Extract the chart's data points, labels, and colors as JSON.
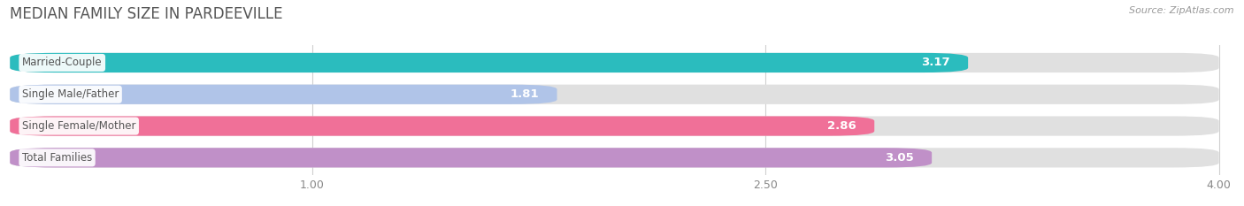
{
  "title": "MEDIAN FAMILY SIZE IN PARDEEVILLE",
  "source": "Source: ZipAtlas.com",
  "categories": [
    "Married-Couple",
    "Single Male/Father",
    "Single Female/Mother",
    "Total Families"
  ],
  "values": [
    3.17,
    1.81,
    2.86,
    3.05
  ],
  "bar_colors": [
    "#2bbcbe",
    "#b0c4e8",
    "#f07098",
    "#c090c8"
  ],
  "bar_bg_color": "#e0e0e0",
  "xmin": 0.0,
  "xmax": 4.0,
  "xtick_vals": [
    1.0,
    2.5,
    4.0
  ],
  "bar_height": 0.62,
  "value_fontsize": 9.5,
  "label_fontsize": 8.5,
  "value_color_inside": "#ffffff",
  "value_color_outside": "#888888",
  "label_text_color": "#555555",
  "title_color": "#555555",
  "source_color": "#999999",
  "background_color": "#ffffff",
  "title_fontsize": 12,
  "source_fontsize": 8
}
